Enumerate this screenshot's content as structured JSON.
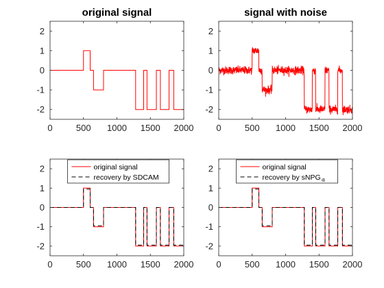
{
  "chart_data": [
    {
      "type": "line",
      "title": "original signal",
      "xlim": [
        0,
        2000
      ],
      "ylim": [
        -2.5,
        2.5
      ],
      "xticks": [
        "0",
        "500",
        "1000",
        "1500",
        "2000"
      ],
      "yticks": [
        "-2",
        "-1",
        "0",
        "1",
        "2"
      ],
      "grid": false,
      "series": [
        {
          "color": "#ff0000",
          "style": "solid",
          "x": [
            0,
            500,
            500,
            600,
            600,
            650,
            650,
            800,
            800,
            1280,
            1280,
            1400,
            1400,
            1450,
            1450,
            1590,
            1590,
            1650,
            1650,
            1780,
            1780,
            1850,
            1850,
            2000
          ],
          "y": [
            0,
            0,
            1,
            1,
            0,
            0,
            -1,
            -1,
            0,
            0,
            -2,
            -2,
            0,
            0,
            -2,
            -2,
            0,
            0,
            -2,
            -2,
            0,
            0,
            -2,
            -2
          ]
        }
      ]
    },
    {
      "type": "line",
      "title": "signal with noise",
      "xlim": [
        0,
        2000
      ],
      "ylim": [
        -2.5,
        2.5
      ],
      "xticks": [
        "0",
        "500",
        "1000",
        "1500",
        "2000"
      ],
      "yticks": [
        "-2",
        "-1",
        "0",
        "1",
        "2"
      ],
      "grid": false,
      "noise_level": 0.1,
      "series": [
        {
          "color": "#ff0000",
          "style": "solid",
          "x": [
            0,
            500,
            500,
            600,
            600,
            650,
            650,
            800,
            800,
            1280,
            1280,
            1400,
            1400,
            1450,
            1450,
            1590,
            1590,
            1650,
            1650,
            1780,
            1780,
            1850,
            1850,
            2000
          ],
          "y": [
            0,
            0,
            1,
            1,
            0,
            0,
            -1,
            -1,
            0,
            0,
            -2,
            -2,
            0,
            0,
            -2,
            -2,
            0,
            0,
            -2,
            -2,
            0,
            0,
            -2,
            -2
          ]
        }
      ]
    },
    {
      "type": "line",
      "title": "",
      "xlim": [
        0,
        2000
      ],
      "ylim": [
        -2.5,
        2.5
      ],
      "xticks": [
        "0",
        "500",
        "1000",
        "1500",
        "2000"
      ],
      "yticks": [
        "-2",
        "-1",
        "0",
        "1",
        "2"
      ],
      "grid": false,
      "legend": "top",
      "series": [
        {
          "name": "original signal",
          "color": "#ff0000",
          "style": "solid",
          "x": [
            0,
            500,
            500,
            600,
            600,
            650,
            650,
            800,
            800,
            1280,
            1280,
            1400,
            1400,
            1450,
            1450,
            1590,
            1590,
            1650,
            1650,
            1780,
            1780,
            1850,
            1850,
            2000
          ],
          "y": [
            0,
            0,
            1,
            1,
            0,
            0,
            -1,
            -1,
            0,
            0,
            -2,
            -2,
            0,
            0,
            -2,
            -2,
            0,
            0,
            -2,
            -2,
            0,
            0,
            -2,
            -2
          ]
        },
        {
          "name": "recovery by SDCAM",
          "color": "#000000",
          "style": "dashed",
          "x": [
            0,
            500,
            500,
            600,
            600,
            650,
            650,
            800,
            800,
            1280,
            1280,
            1400,
            1400,
            1450,
            1450,
            1590,
            1590,
            1650,
            1650,
            1780,
            1780,
            1850,
            1850,
            2000
          ],
          "y": [
            0,
            0,
            0.95,
            0.95,
            0,
            0,
            -0.95,
            -0.95,
            0,
            0,
            -1.95,
            -1.95,
            0,
            0,
            -1.95,
            -1.95,
            0,
            0,
            -1.95,
            -1.95,
            0,
            0,
            -1.95,
            -1.95
          ]
        }
      ]
    },
    {
      "type": "line",
      "title": "",
      "xlim": [
        0,
        2000
      ],
      "ylim": [
        -2.5,
        2.5
      ],
      "xticks": [
        "0",
        "500",
        "1000",
        "1500",
        "2000"
      ],
      "yticks": [
        "-2",
        "-1",
        "0",
        "1",
        "2"
      ],
      "grid": false,
      "legend": "top",
      "series": [
        {
          "name": "original signal",
          "color": "#ff0000",
          "style": "solid",
          "x": [
            0,
            500,
            500,
            600,
            600,
            650,
            650,
            800,
            800,
            1280,
            1280,
            1400,
            1400,
            1450,
            1450,
            1590,
            1590,
            1650,
            1650,
            1780,
            1780,
            1850,
            1850,
            2000
          ],
          "y": [
            0,
            0,
            1,
            1,
            0,
            0,
            -1,
            -1,
            0,
            0,
            -2,
            -2,
            0,
            0,
            -2,
            -2,
            0,
            0,
            -2,
            -2,
            0,
            0,
            -2,
            -2
          ]
        },
        {
          "name": "recovery by sNPG",
          "name_subscript": "-8",
          "color": "#000000",
          "style": "dashed",
          "x": [
            0,
            500,
            500,
            600,
            600,
            650,
            650,
            800,
            800,
            1280,
            1280,
            1400,
            1400,
            1450,
            1450,
            1590,
            1590,
            1650,
            1650,
            1780,
            1780,
            1850,
            1850,
            2000
          ],
          "y": [
            0,
            0,
            0.95,
            0.95,
            0,
            0,
            -0.95,
            -0.95,
            0,
            0,
            -1.95,
            -1.95,
            0,
            0,
            -1.95,
            -1.95,
            0,
            0,
            -1.95,
            -1.95,
            0,
            0,
            -1.95,
            -1.95
          ]
        }
      ]
    }
  ]
}
